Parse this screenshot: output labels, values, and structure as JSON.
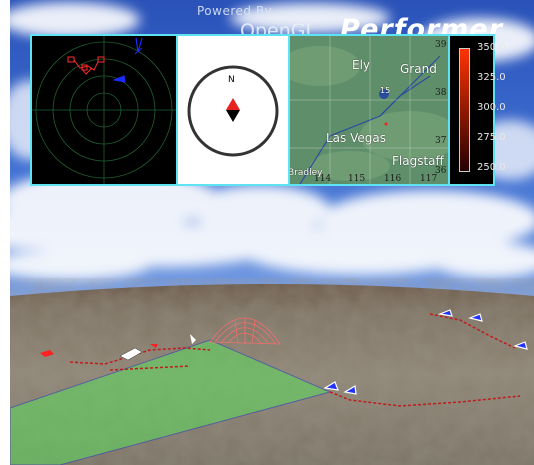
{
  "branding": {
    "powered_by": "Powered By",
    "name": "OpenGL",
    "product": "Performer"
  },
  "compass": {
    "north_label": "N"
  },
  "map": {
    "cities": [
      "Ely",
      "Grand",
      "Las Vegas",
      "Flagstaff"
    ],
    "highway_shield": "15",
    "latitude_labels": [
      "39",
      "38",
      "37",
      "36"
    ],
    "longitude_labels": [
      "114",
      "115",
      "116",
      "117"
    ],
    "bottom_left_fragment": "Bradley"
  },
  "altitude_legend": {
    "ticks": [
      "350.0",
      "325.0",
      "300.0",
      "275.0",
      "250.0"
    ],
    "colors": [
      "#ff3300",
      "#240000"
    ]
  },
  "colors": {
    "hud_border": "#5fe3f2",
    "radar_tracks": "#ff2b2b",
    "radar_friendly": "#1a2bff",
    "coverage_zone": "#5ddc5d",
    "flight_path": "#c01c1c"
  }
}
